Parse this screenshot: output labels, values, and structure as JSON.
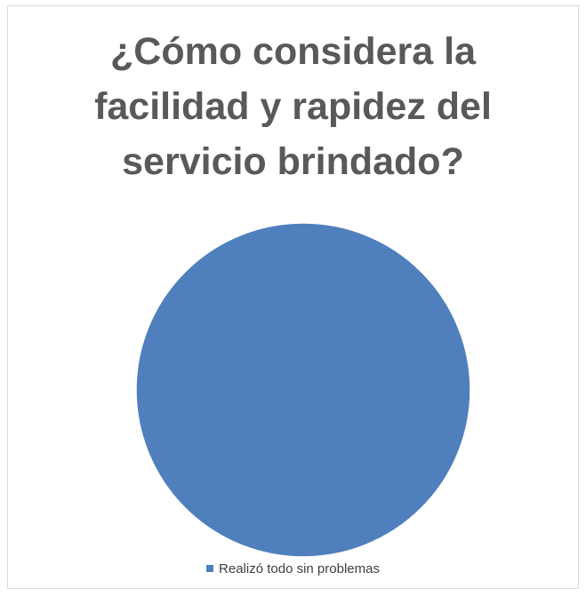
{
  "chart_data": {
    "type": "pie",
    "title_lines": [
      "¿Cómo considera la",
      "facilidad y rapidez del",
      "servicio brindado?"
    ],
    "categories": [
      "Realizó todo sin problemas"
    ],
    "values": [
      100
    ],
    "colors": [
      "#4f7fbd"
    ],
    "legend_position": "bottom"
  }
}
